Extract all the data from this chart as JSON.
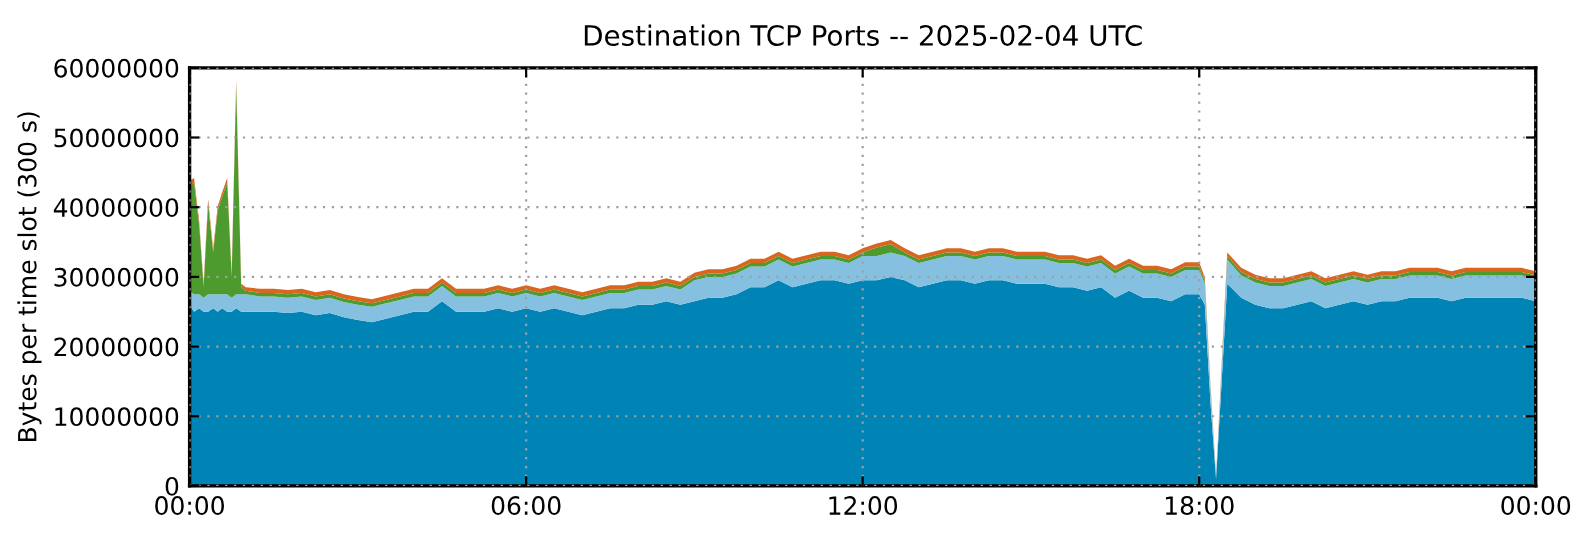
{
  "chart_data": {
    "type": "area",
    "stacked": true,
    "title": "Destination TCP Ports -- 2025-02-04 UTC",
    "ylabel": "Bytes per time slot (300 s)",
    "x": [
      0,
      0.08,
      0.17,
      0.25,
      0.33,
      0.42,
      0.5,
      0.58,
      0.67,
      0.75,
      0.83,
      0.92,
      1.0,
      1.25,
      1.5,
      1.75,
      2.0,
      2.25,
      2.5,
      2.75,
      3.0,
      3.25,
      3.5,
      3.75,
      4.0,
      4.25,
      4.5,
      4.75,
      5.0,
      5.25,
      5.5,
      5.75,
      6.0,
      6.25,
      6.5,
      6.75,
      7.0,
      7.25,
      7.5,
      7.75,
      8.0,
      8.25,
      8.5,
      8.75,
      9.0,
      9.25,
      9.5,
      9.75,
      10.0,
      10.25,
      10.5,
      10.75,
      11.0,
      11.25,
      11.5,
      11.75,
      12.0,
      12.25,
      12.5,
      12.75,
      13.0,
      13.25,
      13.5,
      13.75,
      14.0,
      14.25,
      14.5,
      14.75,
      15.0,
      15.25,
      15.5,
      15.75,
      16.0,
      16.25,
      16.5,
      16.75,
      17.0,
      17.25,
      17.5,
      17.75,
      18.0,
      18.1,
      18.2,
      18.3,
      18.4,
      18.5,
      18.75,
      19.0,
      19.25,
      19.5,
      19.75,
      20.0,
      20.25,
      20.5,
      20.75,
      21.0,
      21.25,
      21.5,
      21.75,
      22.0,
      22.25,
      22.5,
      22.75,
      23.0,
      23.25,
      23.5,
      23.75,
      24.0
    ],
    "series": [
      {
        "color": "#0083b5",
        "values": [
          26000000,
          25000000,
          25500000,
          25000000,
          25000000,
          25500000,
          25000000,
          25500000,
          25000000,
          25000000,
          25500000,
          25000000,
          25000000,
          25000000,
          25000000,
          24800000,
          25000000,
          24500000,
          24800000,
          24200000,
          23800000,
          23500000,
          24000000,
          24500000,
          25000000,
          25000000,
          26500000,
          25000000,
          25000000,
          25000000,
          25500000,
          25000000,
          25500000,
          25000000,
          25500000,
          25000000,
          24500000,
          25000000,
          25500000,
          25500000,
          26000000,
          26000000,
          26500000,
          26000000,
          26500000,
          27000000,
          27000000,
          27500000,
          28500000,
          28500000,
          29500000,
          28500000,
          29000000,
          29500000,
          29500000,
          29000000,
          29500000,
          29500000,
          30000000,
          29500000,
          28500000,
          29000000,
          29500000,
          29500000,
          29000000,
          29500000,
          29500000,
          29000000,
          29000000,
          29000000,
          28500000,
          28500000,
          28000000,
          28500000,
          27000000,
          28000000,
          27000000,
          27000000,
          26500000,
          27500000,
          27500000,
          26000000,
          12000000,
          1000000,
          15000000,
          29000000,
          27000000,
          26000000,
          25500000,
          25500000,
          26000000,
          26500000,
          25500000,
          26000000,
          26500000,
          26000000,
          26500000,
          26500000,
          27000000,
          27000000,
          27000000,
          26500000,
          27000000,
          27000000,
          27000000,
          27000000,
          27000000,
          26500000
        ]
      },
      {
        "color": "#86c0e0",
        "values": [
          2000000,
          2500000,
          2000000,
          2000000,
          2500000,
          2000000,
          2500000,
          2000000,
          2500000,
          2000000,
          2000000,
          2500000,
          2500000,
          2200000,
          2200000,
          2200000,
          2200000,
          2200000,
          2200000,
          2200000,
          2200000,
          2200000,
          2200000,
          2200000,
          2200000,
          2200000,
          2200000,
          2200000,
          2200000,
          2200000,
          2200000,
          2200000,
          2200000,
          2200000,
          2200000,
          2200000,
          2200000,
          2200000,
          2200000,
          2200000,
          2200000,
          2200000,
          2200000,
          2200000,
          3000000,
          3000000,
          3000000,
          3000000,
          3000000,
          3000000,
          3000000,
          3000000,
          3000000,
          3000000,
          3000000,
          3000000,
          3500000,
          3500000,
          3500000,
          3500000,
          3500000,
          3500000,
          3500000,
          3500000,
          3500000,
          3500000,
          3500000,
          3500000,
          3500000,
          3500000,
          3500000,
          3500000,
          3500000,
          3500000,
          3500000,
          3500000,
          3500000,
          3500000,
          3500000,
          3500000,
          3500000,
          3000000,
          2000000,
          300000,
          2000000,
          3500000,
          3200000,
          3200000,
          3200000,
          3200000,
          3200000,
          3200000,
          3200000,
          3200000,
          3200000,
          3200000,
          3200000,
          3200000,
          3200000,
          3200000,
          3200000,
          3200000,
          3200000,
          3200000,
          3200000,
          3200000,
          3200000,
          3200000
        ]
      },
      {
        "color": "#4d9a2e",
        "values": [
          15000000,
          16000000,
          10000000,
          1500000,
          13000000,
          6000000,
          12000000,
          14000000,
          16000000,
          3000000,
          30000000,
          1000000,
          500000,
          500000,
          500000,
          500000,
          500000,
          500000,
          500000,
          500000,
          500000,
          500000,
          500000,
          500000,
          500000,
          500000,
          500000,
          500000,
          500000,
          500000,
          500000,
          500000,
          500000,
          500000,
          500000,
          500000,
          500000,
          500000,
          500000,
          500000,
          500000,
          500000,
          500000,
          500000,
          500000,
          500000,
          500000,
          500000,
          500000,
          500000,
          500000,
          500000,
          500000,
          500000,
          500000,
          500000,
          500000,
          1200000,
          1200000,
          500000,
          500000,
          500000,
          500000,
          500000,
          500000,
          500000,
          500000,
          500000,
          500000,
          500000,
          500000,
          500000,
          500000,
          500000,
          500000,
          500000,
          500000,
          500000,
          500000,
          500000,
          500000,
          400000,
          300000,
          100000,
          300000,
          500000,
          500000,
          500000,
          500000,
          500000,
          500000,
          500000,
          500000,
          500000,
          500000,
          500000,
          500000,
          500000,
          500000,
          500000,
          500000,
          500000,
          500000,
          500000,
          500000,
          500000,
          500000,
          500000
        ]
      },
      {
        "color": "#d9661f",
        "values": [
          800000,
          700000,
          600000,
          500000,
          700000,
          500000,
          600000,
          600000,
          700000,
          500000,
          800000,
          500000,
          500000,
          600000,
          600000,
          600000,
          600000,
          600000,
          600000,
          600000,
          600000,
          600000,
          600000,
          600000,
          600000,
          600000,
          600000,
          600000,
          600000,
          600000,
          600000,
          600000,
          600000,
          600000,
          600000,
          600000,
          600000,
          600000,
          600000,
          600000,
          600000,
          600000,
          600000,
          600000,
          600000,
          600000,
          600000,
          600000,
          600000,
          600000,
          600000,
          600000,
          600000,
          600000,
          600000,
          600000,
          600000,
          600000,
          600000,
          600000,
          600000,
          600000,
          600000,
          600000,
          600000,
          600000,
          600000,
          600000,
          600000,
          600000,
          600000,
          600000,
          600000,
          600000,
          600000,
          600000,
          600000,
          600000,
          600000,
          600000,
          600000,
          500000,
          300000,
          100000,
          300000,
          500000,
          600000,
          600000,
          600000,
          600000,
          600000,
          600000,
          600000,
          600000,
          600000,
          600000,
          600000,
          600000,
          600000,
          600000,
          600000,
          600000,
          600000,
          600000,
          600000,
          600000,
          600000,
          600000
        ]
      }
    ],
    "xlim": [
      0,
      24
    ],
    "xticks": [
      {
        "value": 0,
        "label": "00:00"
      },
      {
        "value": 6,
        "label": "06:00"
      },
      {
        "value": 12,
        "label": "12:00"
      },
      {
        "value": 18,
        "label": "18:00"
      },
      {
        "value": 24,
        "label": "00:00"
      }
    ],
    "ylim": [
      0,
      60000000
    ],
    "yticks": [
      0,
      10000000,
      20000000,
      30000000,
      40000000,
      50000000,
      60000000
    ],
    "grid": true
  }
}
